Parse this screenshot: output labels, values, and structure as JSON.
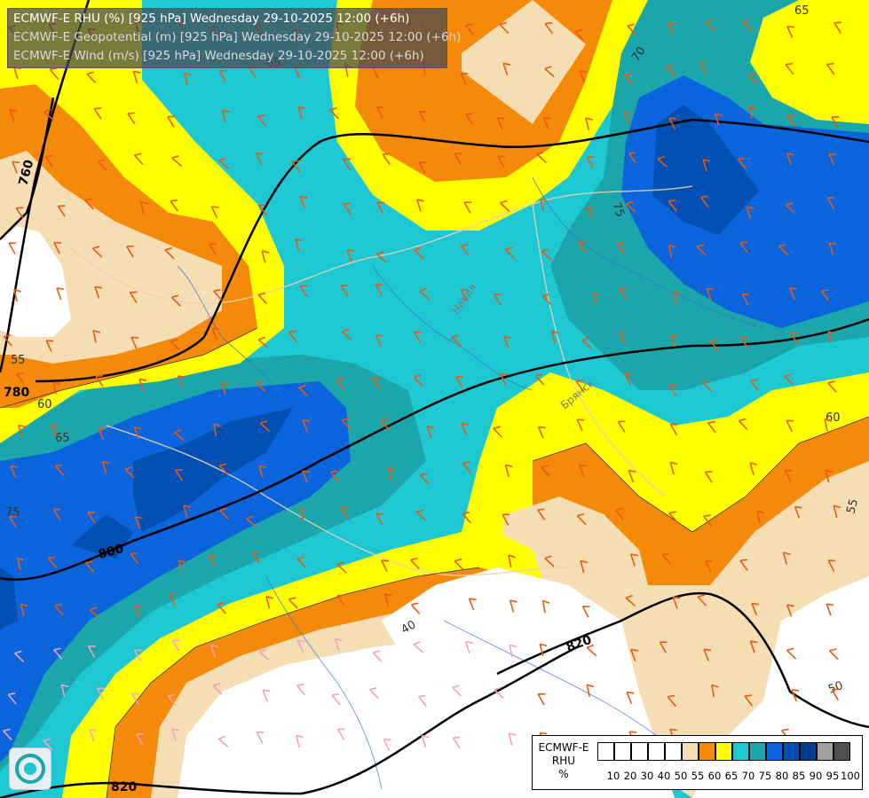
{
  "header": {
    "line1": "ECMWF-E RHU (%) [925 hPa] Wednesday 29-10-2025 12:00 (+6h)",
    "line2": "ECMWF-E Geopotential (m) [925 hPa] Wednesday 29-10-2025 12:00 (+6h)",
    "line3": "ECMWF-E Wind (m/s) [925 hPa] Wednesday 29-10-2025 12:00 (+6h)"
  },
  "legend": {
    "title_line1": "ECMWF-E",
    "title_line2": "RHU",
    "title_line3": "%",
    "bins": [
      {
        "label": "10",
        "color": "#ffffff"
      },
      {
        "label": "20",
        "color": "#ffffff"
      },
      {
        "label": "30",
        "color": "#ffffff"
      },
      {
        "label": "40",
        "color": "#ffffff"
      },
      {
        "label": "50",
        "color": "#ffffff"
      },
      {
        "label": "55",
        "color": "#f5deb3"
      },
      {
        "label": "60",
        "color": "#f58a0a"
      },
      {
        "label": "65",
        "color": "#ffff00"
      },
      {
        "label": "70",
        "color": "#1ec8d2"
      },
      {
        "label": "75",
        "color": "#1aa6aa"
      },
      {
        "label": "80",
        "color": "#0a64dc"
      },
      {
        "label": "85",
        "color": "#0050b4"
      },
      {
        "label": "90",
        "color": "#003c8c"
      },
      {
        "label": "95",
        "color": "#a0a0a0"
      },
      {
        "label": "100",
        "color": "#505050"
      }
    ]
  },
  "height_contours": {
    "labels": [
      "760",
      "780",
      "800",
      "820",
      "820"
    ]
  },
  "rhu_contour_labels": [
    "65",
    "70",
    "75",
    "55",
    "60",
    "65",
    "75",
    "40",
    "50",
    "55",
    "60",
    "65"
  ],
  "place_labels": [
    "Навля",
    "Брянск"
  ],
  "colors": {
    "white": "#ffffff",
    "wheat": "#f5deb3",
    "orange": "#f58a0a",
    "yellow": "#ffff00",
    "cyan": "#1ec8d2",
    "teal": "#1aa6aa",
    "blue": "#0a64dc",
    "darkblue": "#0050b4",
    "navy": "#003c8c",
    "barb": "#e85a10",
    "barb_light": "#f5a0c0"
  }
}
